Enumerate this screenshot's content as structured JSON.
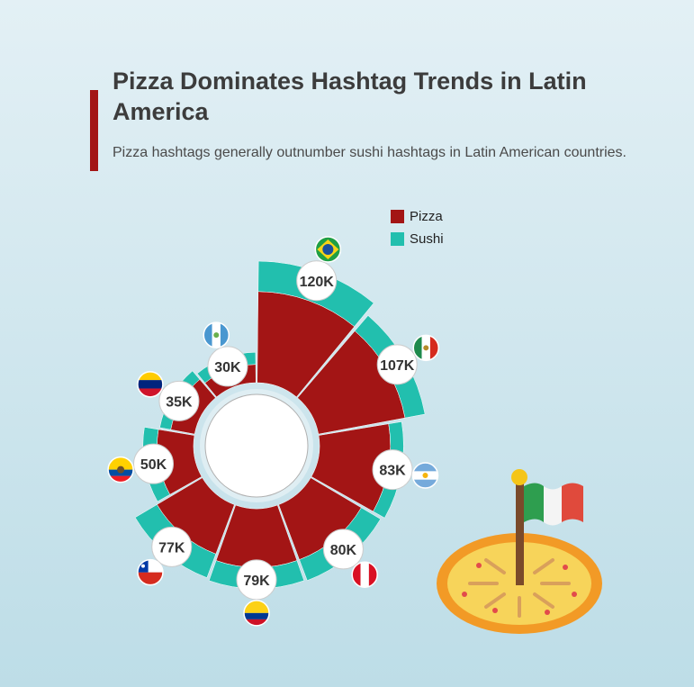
{
  "title": "Pizza Dominates Hashtag Trends in Latin America",
  "subtitle": "Pizza hashtags generally outnumber sushi hashtags in Latin American countries.",
  "colors": {
    "pizza": "#a31515",
    "sushi": "#22bfae",
    "title_accent": "#a31515"
  },
  "legend": [
    {
      "label": "Pizza",
      "color": "#a31515"
    },
    {
      "label": "Sushi",
      "color": "#22bfae"
    }
  ],
  "chart_data": {
    "type": "radial-stacked-bar",
    "title": "Pizza Dominates Hashtag Trends in Latin America",
    "subtitle": "Pizza hashtags generally outnumber sushi hashtags in Latin American countries.",
    "countries": [
      "Brazil",
      "Mexico",
      "Argentina",
      "Peru",
      "Colombia",
      "Chile",
      "Ecuador",
      "Venezuela",
      "Guatemala"
    ],
    "flag_icons": [
      "brazil-flag-icon",
      "mexico-flag-icon",
      "argentina-flag-icon",
      "peru-flag-icon",
      "colombia-flag-icon",
      "chile-flag-icon",
      "ecuador-flag-icon",
      "venezuela-flag-icon",
      "guatemala-flag-icon"
    ],
    "series": [
      {
        "name": "Pizza",
        "values": [
          90000,
          87000,
          70000,
          58000,
          58000,
          52000,
          36000,
          24000,
          18000
        ]
      },
      {
        "name": "Sushi",
        "values": [
          30000,
          20000,
          13000,
          22000,
          21000,
          25000,
          14000,
          11000,
          12000
        ]
      }
    ],
    "total_labels": [
      "120K",
      "107K",
      "83K",
      "80K",
      "79K",
      "77K",
      "50K",
      "35K",
      "30K"
    ],
    "legend_position": "top-right"
  },
  "decoration": {
    "icon": "pizza-with-italian-flag-icon"
  }
}
